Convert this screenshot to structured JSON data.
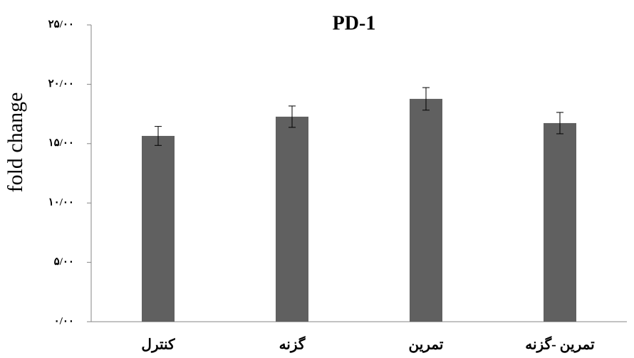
{
  "chart_data": {
    "type": "bar",
    "title": "PD-1",
    "y_label": "fold change",
    "categories": [
      "کنترل",
      "گزنه",
      "تمرین",
      "تمرین -گزنه"
    ],
    "values": [
      15.65,
      17.27,
      18.77,
      16.73
    ],
    "errors": [
      0.8,
      0.9,
      0.95,
      0.9
    ],
    "color": "#606060",
    "ylim": [
      0,
      25
    ],
    "yticks": [
      {
        "value": 0,
        "label": "۰/۰۰"
      },
      {
        "value": 5,
        "label": "۵/۰۰"
      },
      {
        "value": 10,
        "label": "۱۰/۰۰"
      },
      {
        "value": 15,
        "label": "۱۵/۰۰"
      },
      {
        "value": 20,
        "label": "۲۰/۰۰"
      },
      {
        "value": 25,
        "label": "۲۵/۰۰"
      }
    ],
    "grid": false
  }
}
